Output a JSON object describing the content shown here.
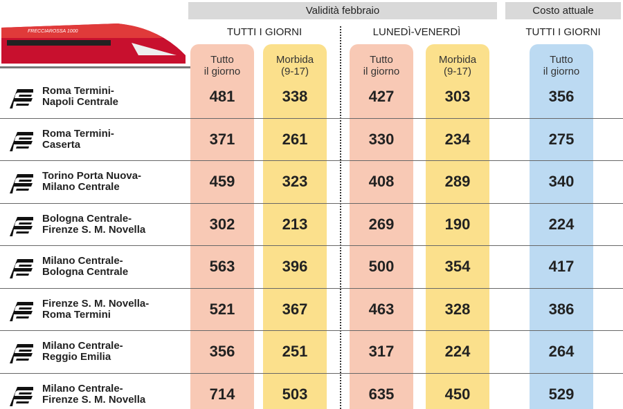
{
  "train_label": "FRECCIAROSSA 1000",
  "header": {
    "groups": [
      "Validità febbraio",
      "Costo attuale"
    ],
    "subheaders": [
      "TUTTI I GIORNI",
      "LUNEDÌ-VENERDÌ",
      "TUTTI I GIORNI"
    ],
    "columns": [
      [
        "Tutto",
        "il giorno"
      ],
      [
        "Morbida",
        "(9-17)"
      ],
      [
        "Tutto",
        "il giorno"
      ],
      [
        "Morbida",
        "(9-17)"
      ],
      [
        "Tutto",
        "il giorno"
      ]
    ]
  },
  "rows": [
    {
      "route": [
        "Roma Termini-",
        "Napoli Centrale"
      ],
      "values": [
        "481",
        "338",
        "427",
        "303",
        "356"
      ]
    },
    {
      "route": [
        "Roma Termini-",
        "Caserta"
      ],
      "values": [
        "371",
        "261",
        "330",
        "234",
        "275"
      ]
    },
    {
      "route": [
        "Torino Porta Nuova-",
        "Milano Centrale"
      ],
      "values": [
        "459",
        "323",
        "408",
        "289",
        "340"
      ]
    },
    {
      "route": [
        "Bologna Centrale-",
        "Firenze S. M. Novella"
      ],
      "values": [
        "302",
        "213",
        "269",
        "190",
        "224"
      ]
    },
    {
      "route": [
        "Milano Centrale-",
        "Bologna Centrale"
      ],
      "values": [
        "563",
        "396",
        "500",
        "354",
        "417"
      ]
    },
    {
      "route": [
        "Firenze S. M. Novella-",
        "Roma Termini"
      ],
      "values": [
        "521",
        "367",
        "463",
        "328",
        "386"
      ]
    },
    {
      "route": [
        "Milano Centrale-",
        "Reggio Emilia"
      ],
      "values": [
        "356",
        "251",
        "317",
        "224",
        "264"
      ]
    },
    {
      "route": [
        "Milano Centrale-",
        "Firenze S. M. Novella"
      ],
      "values": [
        "714",
        "503",
        "635",
        "450",
        "529"
      ]
    }
  ]
}
